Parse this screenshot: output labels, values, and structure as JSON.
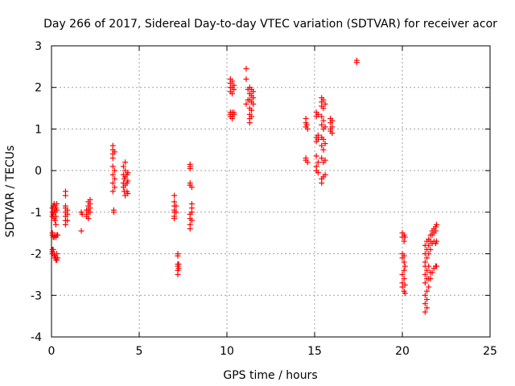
{
  "chart_data": {
    "type": "scatter",
    "title": "Day 266 of 2017, Sidereal Day-to-day VTEC variation (SDTVAR) for receiver acor",
    "xlabel": "GPS time / hours",
    "ylabel": "SDTVAR / TECUs",
    "xlim": [
      0,
      25
    ],
    "ylim": [
      -4,
      3
    ],
    "xticks": [
      0,
      5,
      10,
      15,
      20,
      25
    ],
    "yticks": [
      -4,
      -3,
      -2,
      -1,
      0,
      1,
      2,
      3
    ],
    "xtick_labels": [
      "0",
      "5",
      "10",
      "15",
      "20",
      "25"
    ],
    "ytick_labels": [
      "-4",
      "-3",
      "-2",
      "-1",
      "0",
      "1",
      "2",
      "3"
    ],
    "grid": true,
    "marker": "+",
    "color": "#ff0000",
    "series": [
      {
        "name": "SDTVAR",
        "points": [
          [
            0.05,
            -0.9
          ],
          [
            0.05,
            -1.0
          ],
          [
            0.05,
            -1.1
          ],
          [
            0.05,
            -1.5
          ],
          [
            0.05,
            -1.55
          ],
          [
            0.05,
            -1.9
          ],
          [
            0.05,
            -1.95
          ],
          [
            0.05,
            -2.0
          ],
          [
            0.1,
            -0.85
          ],
          [
            0.1,
            -1.05
          ],
          [
            0.1,
            -1.6
          ],
          [
            0.1,
            -1.9
          ],
          [
            0.15,
            -0.8
          ],
          [
            0.15,
            -0.95
          ],
          [
            0.15,
            -1.15
          ],
          [
            0.15,
            -1.6
          ],
          [
            0.15,
            -2.0
          ],
          [
            0.15,
            -2.05
          ],
          [
            0.2,
            -0.85
          ],
          [
            0.2,
            -1.0
          ],
          [
            0.2,
            -1.2
          ],
          [
            0.2,
            -1.55
          ],
          [
            0.2,
            -2.05
          ],
          [
            0.2,
            -2.1
          ],
          [
            0.25,
            -0.9
          ],
          [
            0.25,
            -1.1
          ],
          [
            0.25,
            -1.3
          ],
          [
            0.25,
            -1.6
          ],
          [
            0.25,
            -2.1
          ],
          [
            0.25,
            -2.15
          ],
          [
            0.3,
            -0.8
          ],
          [
            0.3,
            -0.95
          ],
          [
            0.3,
            -1.55
          ],
          [
            0.3,
            -2.0
          ],
          [
            0.3,
            -2.15
          ],
          [
            0.35,
            -1.55
          ],
          [
            0.35,
            -2.1
          ],
          [
            0.8,
            -0.5
          ],
          [
            0.8,
            -0.6
          ],
          [
            0.8,
            -0.85
          ],
          [
            0.8,
            -0.9
          ],
          [
            0.8,
            -1.0
          ],
          [
            0.8,
            -1.1
          ],
          [
            0.8,
            -1.2
          ],
          [
            0.8,
            -1.3
          ],
          [
            0.9,
            -0.95
          ],
          [
            0.9,
            -1.05
          ],
          [
            0.9,
            -1.2
          ],
          [
            1.7,
            -1.0
          ],
          [
            1.7,
            -1.45
          ],
          [
            1.75,
            -1.05
          ],
          [
            2.0,
            -0.95
          ],
          [
            2.0,
            -1.05
          ],
          [
            2.0,
            -1.1
          ],
          [
            2.1,
            -0.75
          ],
          [
            2.1,
            -0.85
          ],
          [
            2.1,
            -0.95
          ],
          [
            2.1,
            -1.0
          ],
          [
            2.1,
            -1.15
          ],
          [
            2.2,
            -0.7
          ],
          [
            2.2,
            -0.8
          ],
          [
            2.2,
            -0.9
          ],
          [
            2.2,
            -1.0
          ],
          [
            3.5,
            0.6
          ],
          [
            3.5,
            0.5
          ],
          [
            3.5,
            0.4
          ],
          [
            3.5,
            0.3
          ],
          [
            3.5,
            0.1
          ],
          [
            3.5,
            -0.1
          ],
          [
            3.5,
            -0.3
          ],
          [
            3.5,
            -0.5
          ],
          [
            3.55,
            -0.95
          ],
          [
            3.55,
            -1.0
          ],
          [
            3.6,
            0.45
          ],
          [
            3.6,
            0.0
          ],
          [
            3.6,
            -0.2
          ],
          [
            3.6,
            -0.4
          ],
          [
            4.1,
            0.1
          ],
          [
            4.1,
            -0.1
          ],
          [
            4.1,
            -0.3
          ],
          [
            4.1,
            -0.4
          ],
          [
            4.15,
            -0.2
          ],
          [
            4.15,
            -0.5
          ],
          [
            4.2,
            0.2
          ],
          [
            4.2,
            0.0
          ],
          [
            4.2,
            -0.15
          ],
          [
            4.2,
            -0.35
          ],
          [
            4.2,
            -0.6
          ],
          [
            4.3,
            -0.1
          ],
          [
            4.3,
            -0.3
          ],
          [
            4.3,
            -0.5
          ],
          [
            4.35,
            -0.05
          ],
          [
            4.35,
            -0.25
          ],
          [
            4.35,
            -0.55
          ],
          [
            7.0,
            -0.6
          ],
          [
            7.0,
            -0.75
          ],
          [
            7.0,
            -0.85
          ],
          [
            7.0,
            -0.95
          ],
          [
            7.0,
            -1.0
          ],
          [
            7.0,
            -1.1
          ],
          [
            7.0,
            -1.15
          ],
          [
            7.1,
            -0.85
          ],
          [
            7.1,
            -1.0
          ],
          [
            7.2,
            -2.0
          ],
          [
            7.2,
            -2.05
          ],
          [
            7.2,
            -2.25
          ],
          [
            7.2,
            -2.3
          ],
          [
            7.2,
            -2.4
          ],
          [
            7.2,
            -2.5
          ],
          [
            7.25,
            -2.25
          ],
          [
            7.25,
            -2.35
          ],
          [
            7.9,
            0.15
          ],
          [
            7.9,
            0.1
          ],
          [
            7.9,
            0.05
          ],
          [
            7.9,
            -0.3
          ],
          [
            7.9,
            -0.35
          ],
          [
            7.9,
            -1.05
          ],
          [
            7.9,
            -1.15
          ],
          [
            7.9,
            -1.3
          ],
          [
            7.9,
            -1.4
          ],
          [
            8.0,
            -0.4
          ],
          [
            8.0,
            -0.8
          ],
          [
            8.0,
            -0.9
          ],
          [
            8.0,
            -1.0
          ],
          [
            8.0,
            -1.2
          ],
          [
            10.2,
            2.2
          ],
          [
            10.2,
            2.1
          ],
          [
            10.2,
            2.0
          ],
          [
            10.2,
            1.9
          ],
          [
            10.2,
            1.4
          ],
          [
            10.2,
            1.35
          ],
          [
            10.2,
            1.3
          ],
          [
            10.3,
            2.15
          ],
          [
            10.3,
            2.0
          ],
          [
            10.3,
            1.85
          ],
          [
            10.3,
            1.4
          ],
          [
            10.3,
            1.3
          ],
          [
            10.3,
            1.25
          ],
          [
            10.4,
            2.05
          ],
          [
            10.4,
            1.95
          ],
          [
            10.4,
            1.4
          ],
          [
            10.4,
            1.35
          ],
          [
            11.1,
            2.45
          ],
          [
            11.1,
            2.2
          ],
          [
            11.1,
            1.6
          ],
          [
            11.2,
            1.95
          ],
          [
            11.2,
            1.7
          ],
          [
            11.3,
            2.0
          ],
          [
            11.3,
            1.85
          ],
          [
            11.3,
            1.7
          ],
          [
            11.3,
            1.5
          ],
          [
            11.3,
            1.35
          ],
          [
            11.3,
            1.25
          ],
          [
            11.3,
            1.15
          ],
          [
            11.4,
            1.95
          ],
          [
            11.4,
            1.8
          ],
          [
            11.4,
            1.65
          ],
          [
            11.4,
            1.45
          ],
          [
            11.4,
            1.3
          ],
          [
            11.5,
            1.9
          ],
          [
            11.5,
            1.75
          ],
          [
            11.5,
            1.6
          ],
          [
            14.5,
            1.25
          ],
          [
            14.5,
            1.15
          ],
          [
            14.5,
            1.05
          ],
          [
            14.5,
            0.3
          ],
          [
            14.5,
            0.25
          ],
          [
            14.55,
            1.1
          ],
          [
            14.6,
            1.0
          ],
          [
            14.6,
            0.2
          ],
          [
            15.1,
            1.4
          ],
          [
            15.1,
            1.3
          ],
          [
            15.1,
            0.8
          ],
          [
            15.1,
            0.7
          ],
          [
            15.1,
            0.35
          ],
          [
            15.1,
            0.1
          ],
          [
            15.1,
            0.0
          ],
          [
            15.2,
            1.35
          ],
          [
            15.2,
            0.85
          ],
          [
            15.2,
            0.75
          ],
          [
            15.2,
            0.2
          ],
          [
            15.2,
            -0.05
          ],
          [
            15.4,
            1.75
          ],
          [
            15.4,
            1.65
          ],
          [
            15.4,
            1.55
          ],
          [
            15.4,
            1.3
          ],
          [
            15.4,
            1.1
          ],
          [
            15.4,
            0.8
          ],
          [
            15.4,
            0.6
          ],
          [
            15.4,
            0.3
          ],
          [
            15.4,
            -0.2
          ],
          [
            15.4,
            -0.3
          ],
          [
            15.5,
            1.7
          ],
          [
            15.5,
            1.5
          ],
          [
            15.5,
            1.2
          ],
          [
            15.5,
            1.0
          ],
          [
            15.5,
            0.75
          ],
          [
            15.5,
            0.5
          ],
          [
            15.5,
            0.2
          ],
          [
            15.5,
            -0.15
          ],
          [
            15.6,
            1.6
          ],
          [
            15.6,
            1.05
          ],
          [
            15.6,
            0.65
          ],
          [
            15.6,
            0.25
          ],
          [
            15.6,
            -0.1
          ],
          [
            15.9,
            1.25
          ],
          [
            15.9,
            1.15
          ],
          [
            15.9,
            1.0
          ],
          [
            15.9,
            0.95
          ],
          [
            16.0,
            1.2
          ],
          [
            16.0,
            1.05
          ],
          [
            16.0,
            0.9
          ],
          [
            17.4,
            2.6
          ],
          [
            17.4,
            2.65
          ],
          [
            20.0,
            -1.5
          ],
          [
            20.0,
            -1.6
          ],
          [
            20.0,
            -2.0
          ],
          [
            20.0,
            -2.1
          ],
          [
            20.0,
            -2.5
          ],
          [
            20.0,
            -2.7
          ],
          [
            20.0,
            -2.8
          ],
          [
            20.1,
            -1.55
          ],
          [
            20.1,
            -1.7
          ],
          [
            20.1,
            -2.05
          ],
          [
            20.1,
            -2.2
          ],
          [
            20.1,
            -2.4
          ],
          [
            20.1,
            -2.6
          ],
          [
            20.1,
            -2.9
          ],
          [
            20.15,
            -1.6
          ],
          [
            20.15,
            -2.3
          ],
          [
            20.15,
            -2.75
          ],
          [
            20.15,
            -2.95
          ],
          [
            21.3,
            -3.4
          ],
          [
            21.3,
            -3.2
          ],
          [
            21.3,
            -3.0
          ],
          [
            21.3,
            -2.7
          ],
          [
            21.3,
            -2.5
          ],
          [
            21.3,
            -2.3
          ],
          [
            21.3,
            -2.2
          ],
          [
            21.3,
            -2.0
          ],
          [
            21.3,
            -1.8
          ],
          [
            21.4,
            -3.3
          ],
          [
            21.4,
            -3.1
          ],
          [
            21.4,
            -2.9
          ],
          [
            21.4,
            -2.6
          ],
          [
            21.4,
            -2.4
          ],
          [
            21.4,
            -2.1
          ],
          [
            21.4,
            -1.9
          ],
          [
            21.4,
            -1.7
          ],
          [
            21.5,
            -2.8
          ],
          [
            21.5,
            -2.6
          ],
          [
            21.5,
            -2.3
          ],
          [
            21.5,
            -2.0
          ],
          [
            21.5,
            -1.8
          ],
          [
            21.5,
            -1.65
          ],
          [
            21.6,
            -2.6
          ],
          [
            21.6,
            -2.45
          ],
          [
            21.6,
            -1.9
          ],
          [
            21.6,
            -1.7
          ],
          [
            21.6,
            -1.55
          ],
          [
            21.7,
            -2.45
          ],
          [
            21.7,
            -1.75
          ],
          [
            21.7,
            -1.55
          ],
          [
            21.7,
            -1.45
          ],
          [
            21.8,
            -2.35
          ],
          [
            21.8,
            -1.7
          ],
          [
            21.8,
            -1.5
          ],
          [
            21.8,
            -1.4
          ],
          [
            21.9,
            -2.3
          ],
          [
            21.9,
            -1.75
          ],
          [
            21.9,
            -1.45
          ],
          [
            21.9,
            -1.35
          ],
          [
            21.95,
            -2.3
          ],
          [
            21.95,
            -1.7
          ],
          [
            21.95,
            -1.3
          ]
        ]
      }
    ]
  }
}
